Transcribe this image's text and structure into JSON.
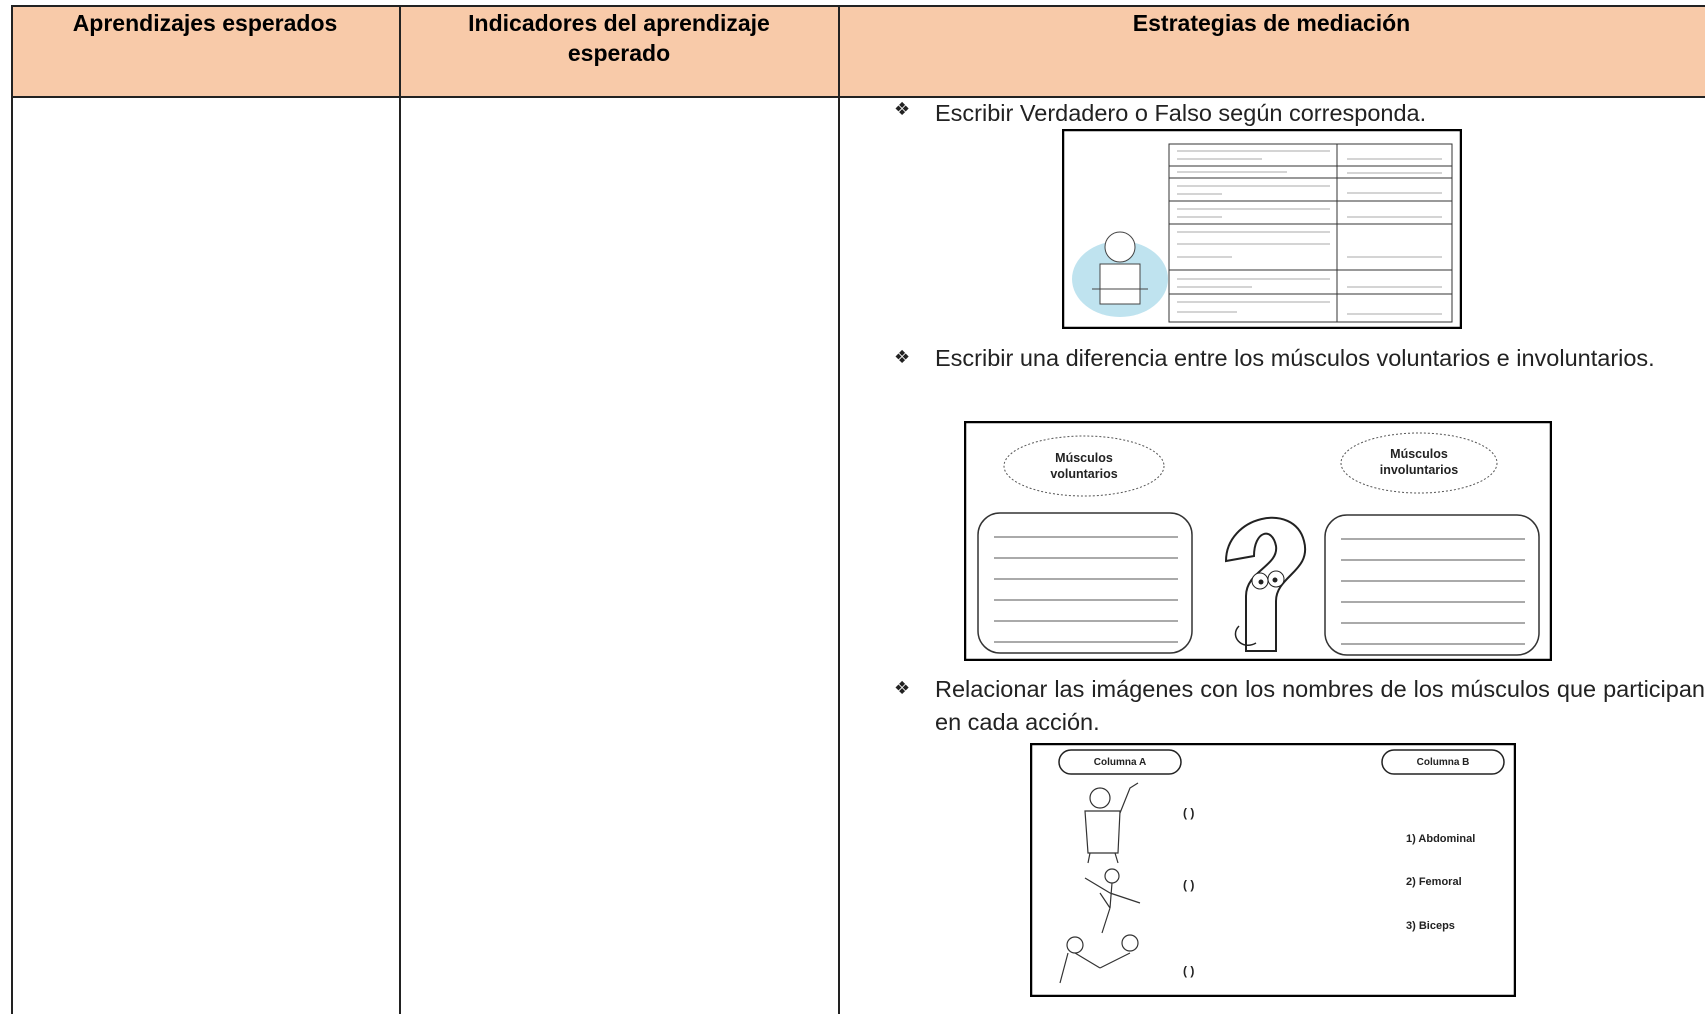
{
  "table": {
    "headers": [
      "Aprendizajes esperados",
      "Indicadores del aprendizaje esperado",
      "Estrategias de mediación"
    ],
    "strategies": [
      {
        "text": "Escribir Verdadero o Falso según corresponda."
      },
      {
        "text": "Escribir una diferencia entre los músculos voluntarios e involuntarios.",
        "figure": {
          "labels": [
            "Músculos voluntarios",
            "Músculos involuntarios"
          ]
        }
      },
      {
        "text": "Relacionar las imágenes con los nombres de los músculos que participan en cada acción.",
        "figure": {
          "column_a": "Columna A",
          "column_b": "Columna B",
          "blanks": [
            "( )",
            "( )",
            "( )"
          ],
          "options": [
            "1) Abdominal",
            "2) Femoral",
            "3) Biceps"
          ]
        }
      }
    ]
  }
}
